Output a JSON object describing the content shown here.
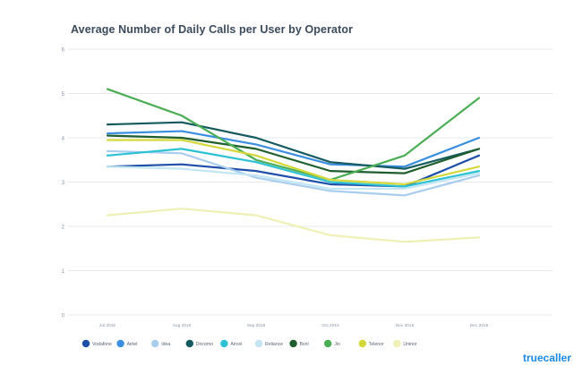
{
  "chart_data": {
    "type": "line",
    "title": "Average Number of Daily Calls per User by Operator",
    "xlabel": "",
    "ylabel": "",
    "categories": [
      "Jul 2016",
      "Aug 2016",
      "Sep 2016",
      "Oct 2016",
      "Nov 2016",
      "Dec 2016"
    ],
    "ylim": [
      0,
      6
    ],
    "yticks": [
      0,
      1,
      2,
      3,
      4,
      5,
      6
    ],
    "grid": true,
    "legend_position": "bottom",
    "series": [
      {
        "name": "Vodafone",
        "color": "#1f4fa8",
        "values": [
          3.35,
          3.4,
          3.25,
          2.95,
          2.9,
          3.6
        ]
      },
      {
        "name": "Airtel",
        "color": "#3a8fe0",
        "values": [
          4.1,
          4.15,
          3.85,
          3.4,
          3.35,
          4.0
        ]
      },
      {
        "name": "Idea",
        "color": "#a9cdee",
        "values": [
          3.7,
          3.65,
          3.1,
          2.8,
          2.7,
          3.15
        ]
      },
      {
        "name": "Docomo",
        "color": "#145a5e",
        "values": [
          4.3,
          4.35,
          4.0,
          3.45,
          3.3,
          3.75
        ]
      },
      {
        "name": "Aircel",
        "color": "#2cc1d3",
        "values": [
          3.6,
          3.75,
          3.45,
          3.0,
          2.9,
          3.25
        ]
      },
      {
        "name": "Reliance",
        "color": "#c2e6f3",
        "values": [
          3.35,
          3.3,
          3.15,
          2.85,
          2.85,
          3.2
        ]
      },
      {
        "name": "Bsnl",
        "color": "#1d5e2c",
        "values": [
          4.05,
          4.0,
          3.75,
          3.25,
          3.2,
          3.75
        ]
      },
      {
        "name": "Jio",
        "color": "#4cae54",
        "values": [
          5.1,
          4.5,
          3.5,
          3.05,
          3.6,
          4.9
        ]
      },
      {
        "name": "Telenor",
        "color": "#d4d93b",
        "values": [
          3.95,
          3.95,
          3.6,
          3.05,
          2.95,
          3.35
        ]
      },
      {
        "name": "Uninor",
        "color": "#eef0b4",
        "values": [
          2.25,
          2.4,
          2.25,
          1.8,
          1.65,
          1.75
        ]
      }
    ]
  },
  "brand": "truecaller"
}
